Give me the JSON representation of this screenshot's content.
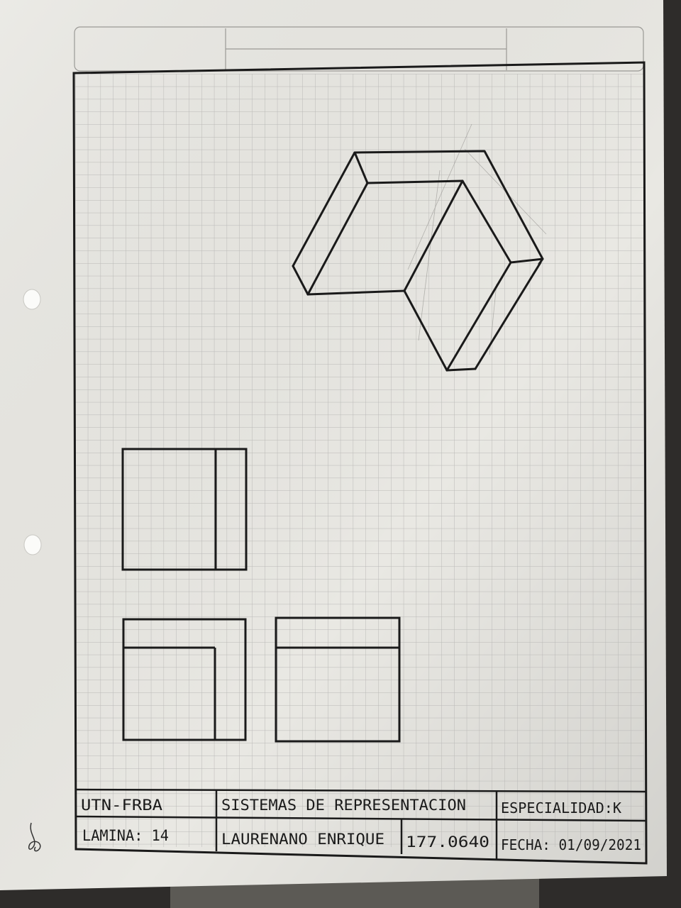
{
  "title_block": {
    "row1": {
      "institution": "UTN-FRBA",
      "subject": "SISTEMAS DE REPRESENTACION",
      "specialty": "ESPECIALIDAD:K"
    },
    "row2": {
      "sheet": "LAMINA: 14",
      "student": "LAURENANO ENRIQUE",
      "student_id": "177.0640",
      "date": "FECHA: 01/09/2021"
    }
  },
  "colors": {
    "paper": "#e9e8e3",
    "grid": "#b9b8b6",
    "ink": "#1a1a1a",
    "background": "#2e2c2a"
  }
}
